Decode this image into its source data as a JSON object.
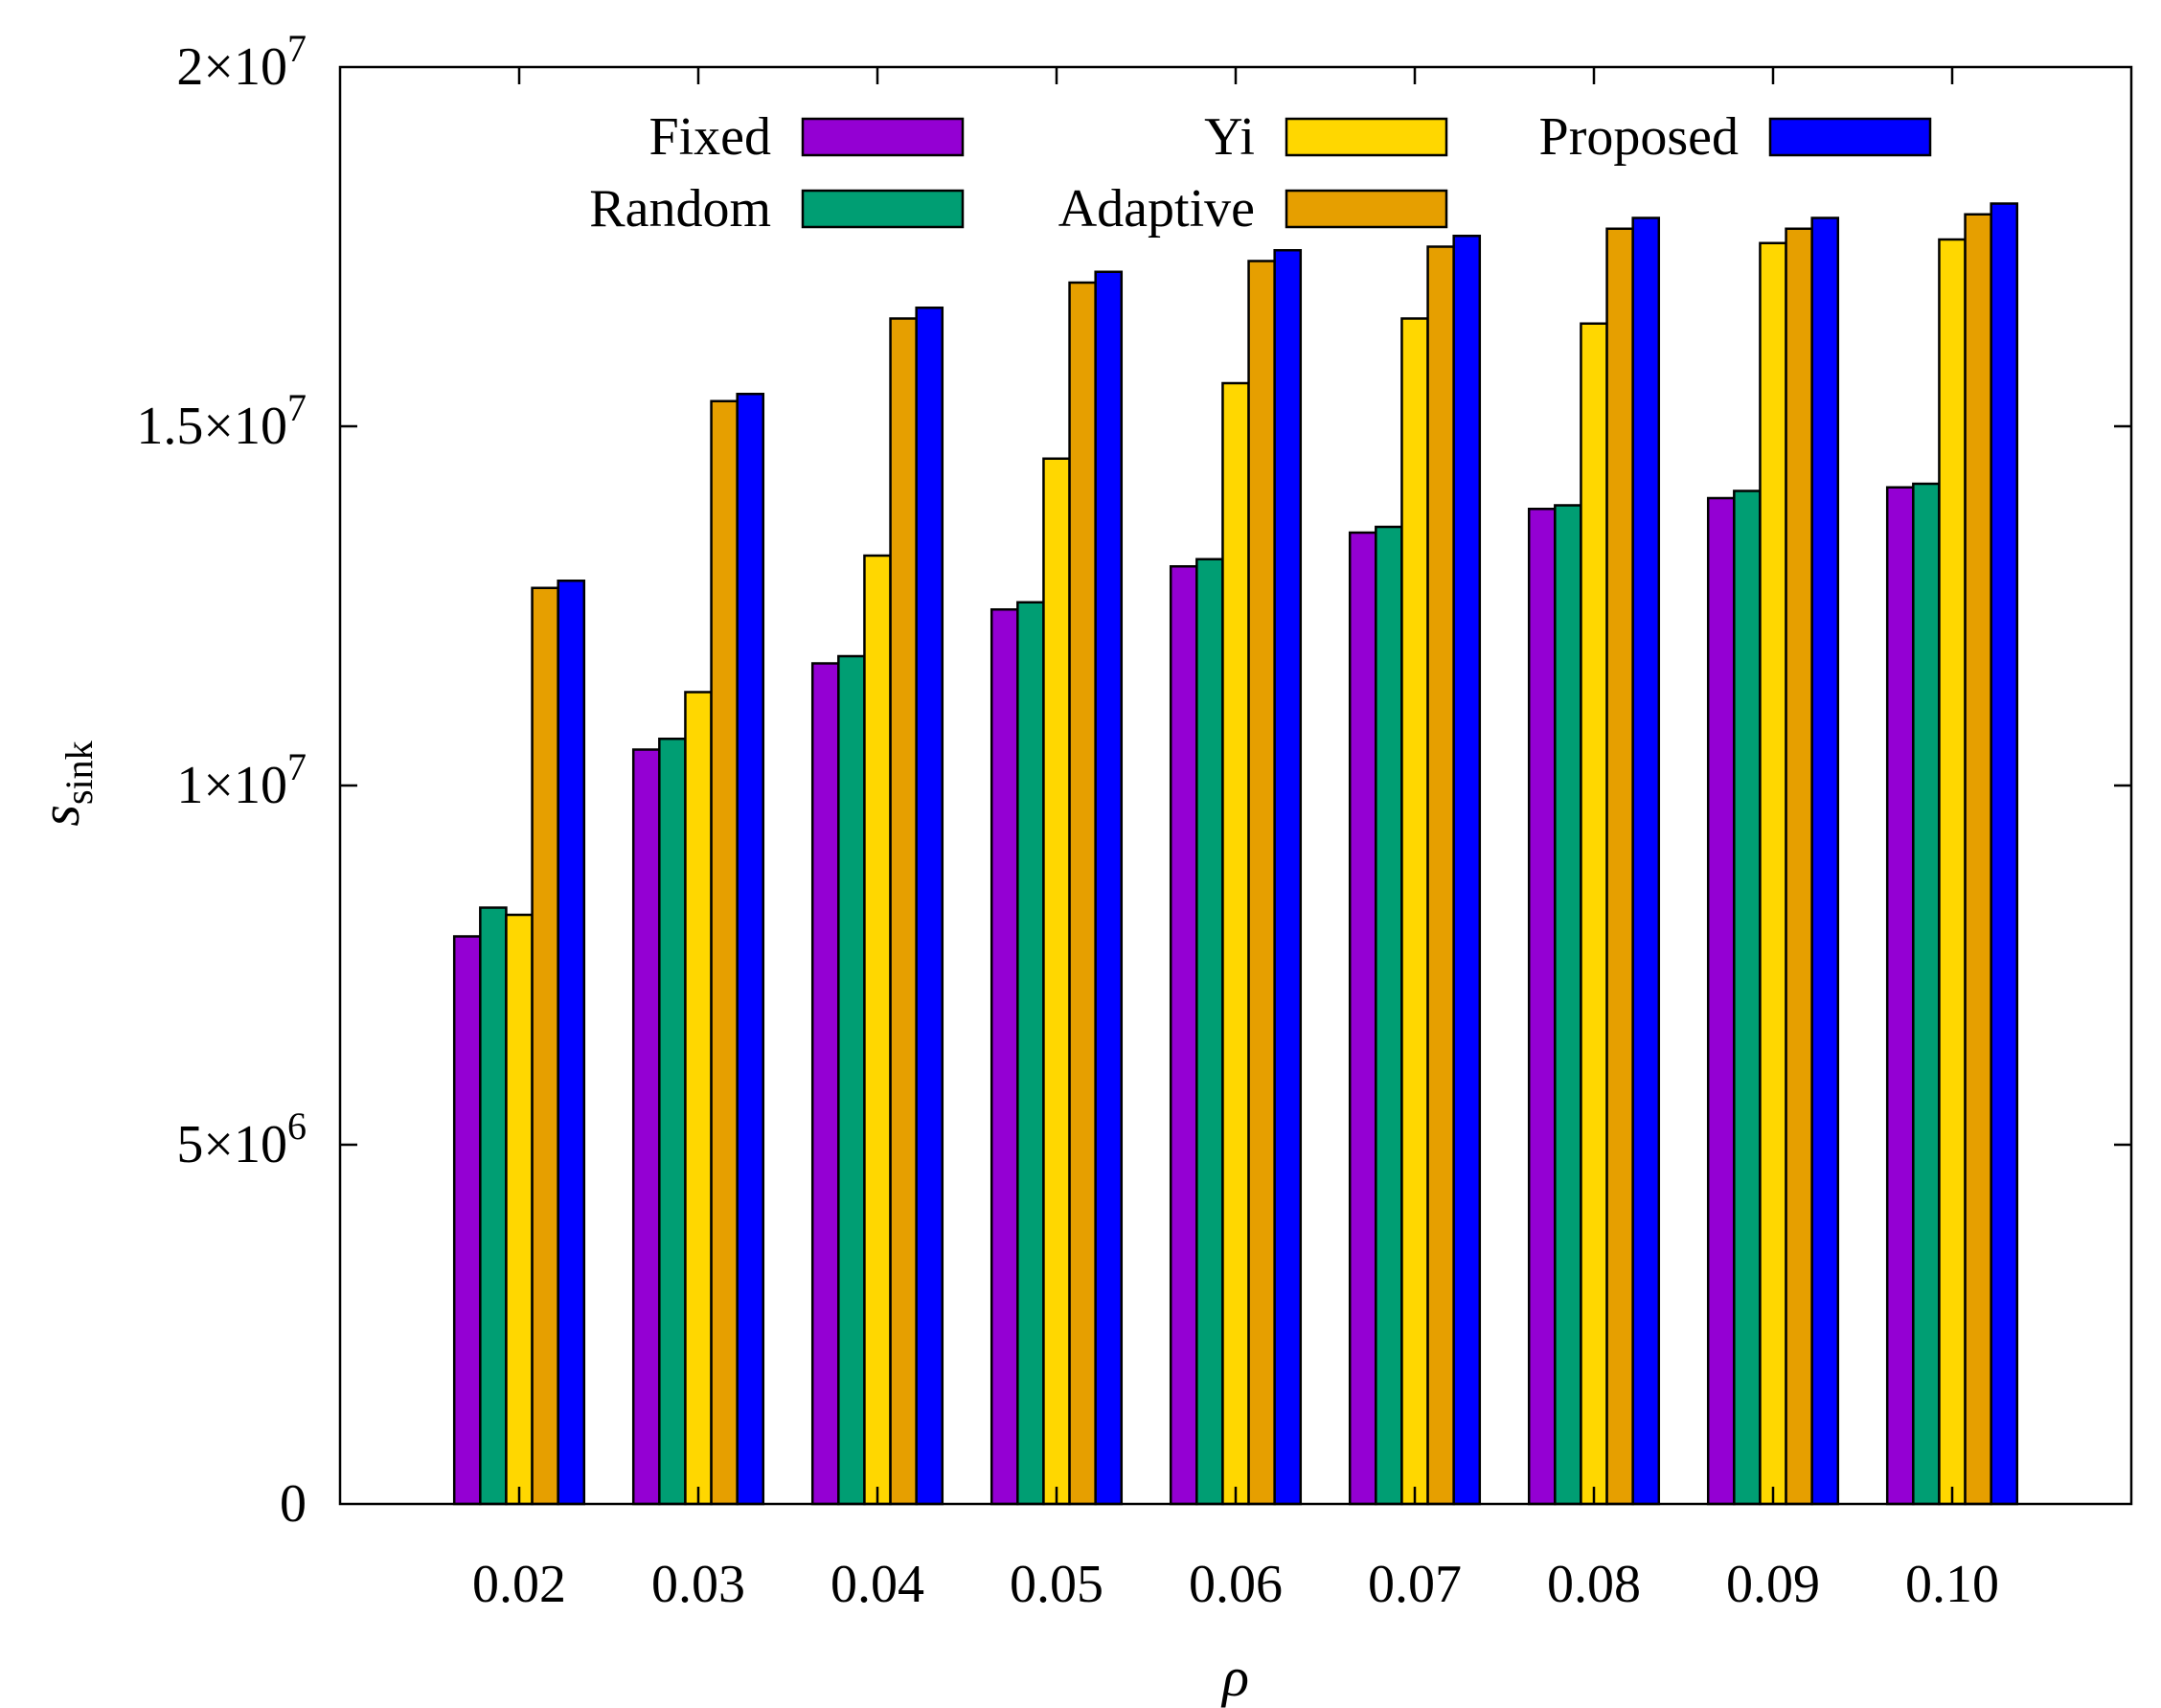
{
  "chart_data": {
    "type": "bar",
    "xlabel": "ρ",
    "ylabel": "s",
    "ylabel_sub": "sink",
    "ylim": [
      0,
      20000000
    ],
    "grid": false,
    "legend_position": "top",
    "categories": [
      "0.02",
      "0.03",
      "0.04",
      "0.05",
      "0.06",
      "0.07",
      "0.08",
      "0.09",
      "0.10"
    ],
    "y_ticks": [
      {
        "value": 0,
        "mantissa": "0",
        "exponent": ""
      },
      {
        "value": 5000000,
        "mantissa": "5×10",
        "exponent": "6"
      },
      {
        "value": 10000000,
        "mantissa": "1×10",
        "exponent": "7"
      },
      {
        "value": 15000000,
        "mantissa": "1.5×10",
        "exponent": "7"
      },
      {
        "value": 20000000,
        "mantissa": "2×10",
        "exponent": "7"
      }
    ],
    "series": [
      {
        "name": "Fixed",
        "color": "#9400D3",
        "values": [
          7900000,
          10500000,
          11700000,
          12450000,
          13050000,
          13520000,
          13850000,
          14000000,
          14150000
        ]
      },
      {
        "name": "Random",
        "color": "#009E73",
        "values": [
          8300000,
          10650000,
          11800000,
          12550000,
          13150000,
          13600000,
          13900000,
          14100000,
          14200000
        ]
      },
      {
        "name": "Yi",
        "color": "#FFD700",
        "values": [
          8200000,
          11300000,
          13200000,
          14550000,
          15600000,
          16500000,
          16430000,
          17550000,
          17600000
        ]
      },
      {
        "name": "Adaptive",
        "color": "#E69F00",
        "values": [
          12750000,
          15350000,
          16500000,
          17000000,
          17300000,
          17500000,
          17750000,
          17750000,
          17950000
        ]
      },
      {
        "name": "Proposed",
        "color": "#0000FF",
        "values": [
          12850000,
          15450000,
          16650000,
          17150000,
          17450000,
          17650000,
          17900000,
          17900000,
          18100000
        ]
      }
    ]
  }
}
